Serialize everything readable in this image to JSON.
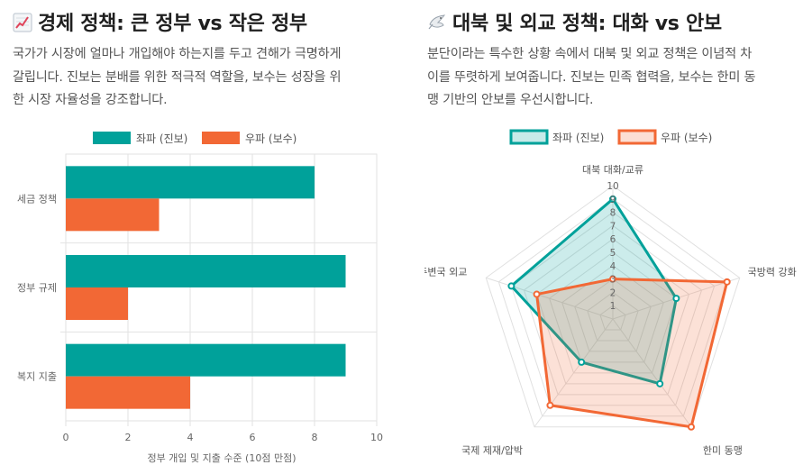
{
  "left": {
    "title": "경제 정책: 큰 정부 vs 작은 정부",
    "icon": "chart-increasing-icon",
    "desc_lines": [
      "국가가 시장에 얼마나 개입해야 하는지를 두고 견해가 극명하게",
      "갈립니다. 진보는 분배를 위한 적극적 역할을, 보수는 성장을 위",
      "한 시장 자율성을 강조합니다."
    ]
  },
  "right": {
    "title": "대북 및 외교 정책: 대화 vs 안보",
    "icon": "dove-icon",
    "desc_lines": [
      "분단이라는 특수한 상황 속에서 대북 및 외교 정책은 이념적 차",
      "이를 뚜렷하게 보여줍니다. 진보는 민족 협력을, 보수는 한미 동",
      "맹 기반의 안보를 우선시합니다."
    ]
  },
  "colors": {
    "left_party": "#00a19a",
    "right_party": "#f26835"
  },
  "chart_data": [
    {
      "type": "bar",
      "orientation": "horizontal",
      "categories": [
        "세금 정책",
        "정부 규제",
        "복지 지출"
      ],
      "series": [
        {
          "name": "좌파 (진보)",
          "values": [
            8,
            9,
            9
          ]
        },
        {
          "name": "우파 (보수)",
          "values": [
            3,
            2,
            4
          ]
        }
      ],
      "xlabel": "정부 개입 및 지출 수준 (10점 만점)",
      "xlim": [
        0,
        10
      ],
      "xticks": [
        0,
        2,
        4,
        6,
        8,
        10
      ],
      "legend": "top"
    },
    {
      "type": "radar",
      "categories": [
        "대북 대화/교류",
        "국방력 강화",
        "한미 동맹",
        "국제 제재/압박",
        "주변국 외교"
      ],
      "series": [
        {
          "name": "좌파 (진보)",
          "values": [
            9,
            5,
            6,
            4,
            8
          ]
        },
        {
          "name": "우파 (보수)",
          "values": [
            3,
            9,
            10,
            8,
            6
          ]
        }
      ],
      "rlim": [
        0,
        10
      ],
      "rticks": [
        1,
        2,
        3,
        4,
        5,
        6,
        7,
        8,
        9,
        10
      ],
      "legend": "top"
    }
  ]
}
